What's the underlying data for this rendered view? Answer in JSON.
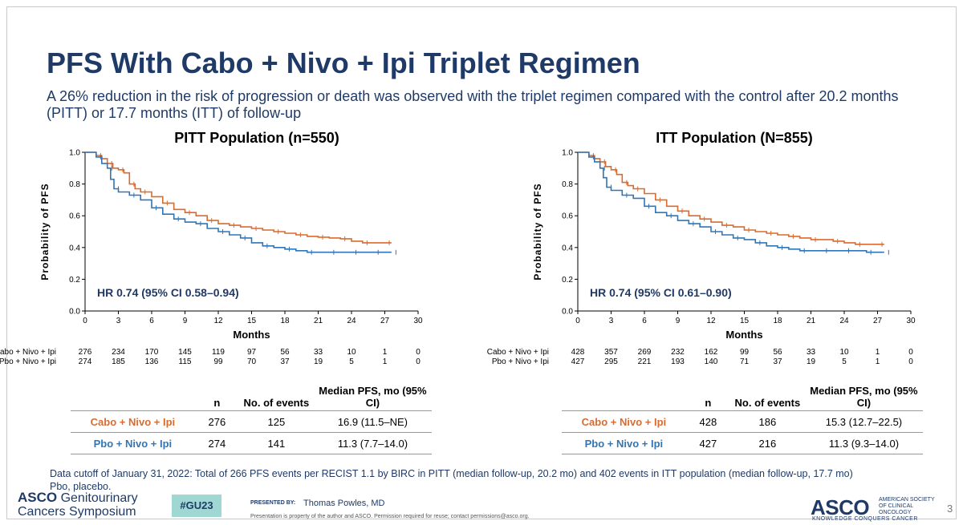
{
  "slide": {
    "title": "PFS With Cabo + Nivo + Ipi Triplet Regimen",
    "subtitle": "A 26% reduction in the risk of progression or death was observed with the triplet regimen compared with the control after 20.2 months (PITT) or 17.7 months (ITT) of follow-up",
    "footnote_line1": "Data cutoff of January 31, 2022: Total of 266 PFS events per RECIST 1.1 by BIRC in PITT (median follow-up, 20.2 mo) and 402 events in ITT population (median follow-up, 17.7 mo)",
    "footnote_line2": "Pbo, placebo.",
    "page_number": "3"
  },
  "branding": {
    "asco_gu_line1": "ASCO",
    "asco_gu_line1b": "Genitourinary",
    "asco_gu_line2": "Cancers Symposium",
    "hashtag": "#GU23",
    "presented_by": "PRESENTED BY:",
    "presenter": "Thomas Powles, MD",
    "property_note": "Presentation is property of the author and ASCO. Permission required for reuse; contact permissions@asco.org.",
    "asco_logo": "ASCO",
    "asco_society": "AMERICAN SOCIETY OF CLINICAL ONCOLOGY",
    "asco_tagline": "KNOWLEDGE CONQUERS CANCER"
  },
  "colors": {
    "cabo": "#d96b2f",
    "pbo": "#2f76b8",
    "title": "#1f3a67"
  },
  "chart_data": [
    {
      "type": "line",
      "title": "PITT Population (n=550)",
      "xlabel": "Months",
      "ylabel": "Probability of PFS",
      "xlim": [
        0,
        30
      ],
      "ylim": [
        0,
        1
      ],
      "xticks": [
        0,
        3,
        6,
        9,
        12,
        15,
        18,
        21,
        24,
        27,
        30
      ],
      "yticks": [
        "0.0",
        "0.2",
        "0.4",
        "0.6",
        "0.8",
        "1.0"
      ],
      "annotation": "HR 0.74 (95% CI 0.58–0.94)",
      "series": [
        {
          "name": "Cabo + Nivo + Ipi",
          "color": "#d96b2f",
          "x": [
            0,
            1,
            1.5,
            2,
            2.5,
            3,
            3.5,
            4,
            4.5,
            5,
            6,
            7,
            8,
            9,
            10,
            11,
            12,
            13,
            14,
            15,
            16,
            17,
            18,
            19,
            20,
            21,
            22,
            23,
            24,
            25,
            26,
            27,
            27.6
          ],
          "y": [
            1.0,
            0.98,
            0.96,
            0.93,
            0.9,
            0.89,
            0.87,
            0.8,
            0.77,
            0.75,
            0.72,
            0.68,
            0.64,
            0.62,
            0.6,
            0.57,
            0.55,
            0.54,
            0.53,
            0.52,
            0.51,
            0.5,
            0.49,
            0.48,
            0.47,
            0.465,
            0.46,
            0.455,
            0.44,
            0.43,
            0.43,
            0.43,
            0.43
          ]
        },
        {
          "name": "Pbo + Nivo + Ipi",
          "color": "#2f76b8",
          "x": [
            0,
            1,
            1.5,
            2,
            2.3,
            2.6,
            3,
            4,
            5,
            6,
            7,
            8,
            9,
            10,
            11,
            12,
            13,
            14,
            15,
            16,
            17,
            18,
            19,
            20,
            21,
            22,
            23,
            24,
            25,
            26,
            27,
            27.6
          ],
          "y": [
            1.0,
            0.97,
            0.93,
            0.9,
            0.83,
            0.77,
            0.75,
            0.73,
            0.7,
            0.65,
            0.61,
            0.58,
            0.56,
            0.55,
            0.52,
            0.5,
            0.48,
            0.46,
            0.43,
            0.41,
            0.4,
            0.39,
            0.38,
            0.37,
            0.37,
            0.37,
            0.37,
            0.37,
            0.37,
            0.37,
            0.37,
            0.37
          ]
        }
      ],
      "risk_table": {
        "times": [
          0,
          3,
          6,
          9,
          12,
          15,
          18,
          21,
          24,
          27,
          30
        ],
        "rows": [
          {
            "label": "Cabo + Nivo + Ipi",
            "values": [
              "276",
              "234",
              "170",
              "145",
              "119",
              "97",
              "56",
              "33",
              "10",
              "1",
              "0"
            ]
          },
          {
            "label": "Pbo + Nivo + Ipi",
            "values": [
              "274",
              "185",
              "136",
              "115",
              "99",
              "70",
              "37",
              "19",
              "5",
              "1",
              "0"
            ]
          }
        ]
      },
      "summary": {
        "headers": [
          "n",
          "No. of events",
          "Median PFS, mo (95% CI)"
        ],
        "rows": [
          {
            "arm": "Cabo + Nivo + Ipi",
            "n": "276",
            "events": "125",
            "median": "16.9 (11.5–NE)"
          },
          {
            "arm": "Pbo + Nivo + Ipi",
            "n": "274",
            "events": "141",
            "median": "11.3 (7.7–14.0)"
          }
        ]
      }
    },
    {
      "type": "line",
      "title": "ITT Population (N=855)",
      "xlabel": "Months",
      "ylabel": "Probability of PFS",
      "xlim": [
        0,
        30
      ],
      "ylim": [
        0,
        1
      ],
      "xticks": [
        0,
        3,
        6,
        9,
        12,
        15,
        18,
        21,
        24,
        27,
        30
      ],
      "yticks": [
        "0.0",
        "0.2",
        "0.4",
        "0.6",
        "0.8",
        "1.0"
      ],
      "annotation": "HR 0.74 (95% CI 0.61–0.90)",
      "series": [
        {
          "name": "Cabo + Nivo + Ipi",
          "color": "#d96b2f",
          "x": [
            0,
            1,
            1.5,
            2,
            2.5,
            3,
            3.5,
            4,
            4.5,
            5,
            6,
            7,
            8,
            9,
            10,
            11,
            12,
            13,
            14,
            15,
            16,
            17,
            18,
            19,
            20,
            21,
            22,
            23,
            24,
            25,
            26,
            27,
            27.6
          ],
          "y": [
            1.0,
            0.98,
            0.96,
            0.94,
            0.91,
            0.89,
            0.86,
            0.81,
            0.79,
            0.77,
            0.74,
            0.7,
            0.66,
            0.63,
            0.6,
            0.58,
            0.56,
            0.54,
            0.53,
            0.51,
            0.5,
            0.49,
            0.48,
            0.47,
            0.46,
            0.45,
            0.45,
            0.44,
            0.43,
            0.42,
            0.42,
            0.42,
            0.42
          ]
        },
        {
          "name": "Pbo + Nivo + Ipi",
          "color": "#2f76b8",
          "x": [
            0,
            1,
            1.5,
            2,
            2.3,
            2.6,
            3,
            4,
            5,
            6,
            7,
            8,
            9,
            10,
            11,
            12,
            13,
            14,
            15,
            16,
            17,
            18,
            19,
            20,
            21,
            22,
            23,
            24,
            25,
            26,
            27,
            27.6
          ],
          "y": [
            1.0,
            0.97,
            0.94,
            0.9,
            0.84,
            0.78,
            0.76,
            0.73,
            0.71,
            0.66,
            0.62,
            0.6,
            0.57,
            0.55,
            0.53,
            0.5,
            0.48,
            0.46,
            0.45,
            0.43,
            0.41,
            0.4,
            0.39,
            0.38,
            0.38,
            0.38,
            0.38,
            0.38,
            0.38,
            0.37,
            0.37,
            0.37
          ]
        }
      ],
      "risk_table": {
        "times": [
          0,
          3,
          6,
          9,
          12,
          15,
          18,
          21,
          24,
          27,
          30
        ],
        "rows": [
          {
            "label": "Cabo + Nivo + Ipi",
            "values": [
              "428",
              "357",
              "269",
              "232",
              "162",
              "99",
              "56",
              "33",
              "10",
              "1",
              "0"
            ]
          },
          {
            "label": "Pbo + Nivo + Ipi",
            "values": [
              "427",
              "295",
              "221",
              "193",
              "140",
              "71",
              "37",
              "19",
              "5",
              "1",
              "0"
            ]
          }
        ]
      },
      "summary": {
        "headers": [
          "n",
          "No. of events",
          "Median PFS, mo (95% CI)"
        ],
        "rows": [
          {
            "arm": "Cabo + Nivo + Ipi",
            "n": "428",
            "events": "186",
            "median": "15.3 (12.7–22.5)"
          },
          {
            "arm": "Pbo + Nivo + Ipi",
            "n": "427",
            "events": "216",
            "median": "11.3 (9.3–14.0)"
          }
        ]
      }
    }
  ]
}
